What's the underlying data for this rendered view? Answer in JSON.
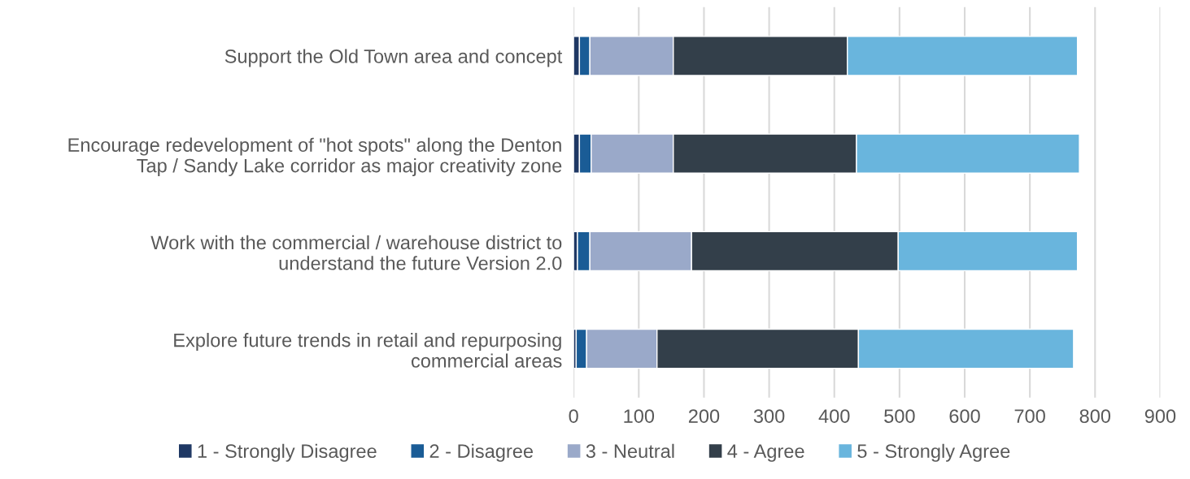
{
  "chart_data": {
    "type": "bar",
    "orientation": "horizontal",
    "stacked": true,
    "categories": [
      "Support the Old Town area and concept",
      "Encourage redevelopment of \"hot spots\" along the Denton\nTap / Sandy Lake corridor as major creativity zone",
      "Work with the commercial / warehouse district to\nunderstand the future Version 2.0",
      "Explore future trends in retail and repurposing\ncommercial areas"
    ],
    "series": [
      {
        "name": "1 - Strongly Disagree",
        "color": "#1f3864",
        "values": [
          9,
          9,
          6,
          4
        ]
      },
      {
        "name": "2 - Disagree",
        "color": "#1a5c96",
        "values": [
          16,
          18,
          19,
          16
        ]
      },
      {
        "name": "3 - Neutral",
        "color": "#9aa9c9",
        "values": [
          128,
          126,
          156,
          108
        ]
      },
      {
        "name": "4 - Agree",
        "color": "#333f4a",
        "values": [
          267,
          281,
          317,
          309
        ]
      },
      {
        "name": "5 - Strongly Agree",
        "color": "#69b5dd",
        "values": [
          353,
          342,
          275,
          330
        ]
      }
    ],
    "xlim": [
      0,
      900
    ],
    "xticks": [
      0,
      100,
      200,
      300,
      400,
      500,
      600,
      700,
      800,
      900
    ],
    "grid": "x",
    "legend": "bottom"
  }
}
